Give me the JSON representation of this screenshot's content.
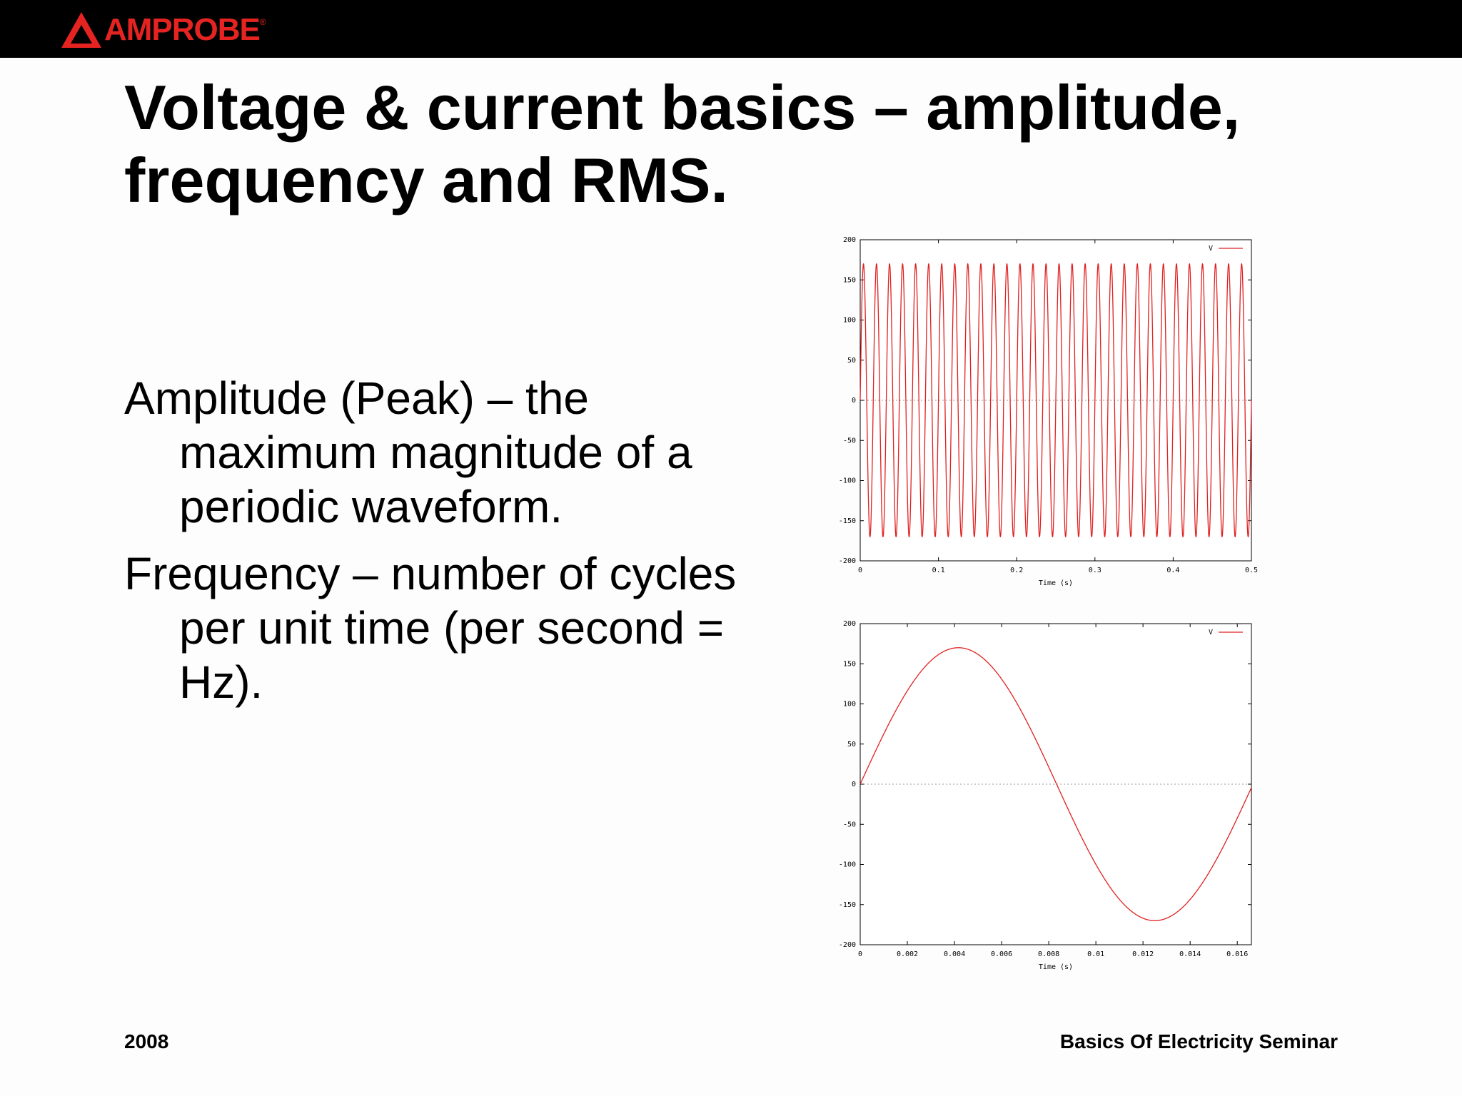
{
  "header": {
    "brand": "AMPROBE",
    "brand_color": "#e52421",
    "registered_mark": "®"
  },
  "slide": {
    "title": "Voltage & current basics – amplitude, frequency and RMS.",
    "bullets": [
      "Amplitude (Peak) – the maximum magnitude of a periodic waveform.",
      "Frequency – number of cycles per unit time (per second = Hz)."
    ]
  },
  "footer": {
    "year": "2008",
    "seminar": "Basics Of Electricity Seminar"
  },
  "chart_data": [
    {
      "type": "line",
      "xlabel": "Time (s)",
      "ylabel": "",
      "xlim": [
        0,
        0.5
      ],
      "ylim": [
        -200,
        200
      ],
      "xticks": [
        "0",
        "0.1",
        "0.2",
        "0.3",
        "0.4",
        "0.5"
      ],
      "yticks": [
        "-200",
        "-150",
        "-100",
        "-50",
        "0",
        "50",
        "100",
        "150",
        "200"
      ],
      "legend": "top-right",
      "zero_line": true,
      "series": [
        {
          "name": "V",
          "color": "#e02020",
          "function": "sine",
          "amplitude": 170,
          "frequency_hz": 60
        }
      ]
    },
    {
      "type": "line",
      "xlabel": "Time (s)",
      "ylabel": "",
      "xlim": [
        0,
        0.0166
      ],
      "ylim": [
        -200,
        200
      ],
      "xticks": [
        "0",
        "0.002",
        "0.004",
        "0.006",
        "0.008",
        "0.01",
        "0.012",
        "0.014",
        "0.016"
      ],
      "yticks": [
        "-200",
        "-150",
        "-100",
        "-50",
        "0",
        "50",
        "100",
        "150",
        "200"
      ],
      "legend": "top-right",
      "zero_line": true,
      "series": [
        {
          "name": "V",
          "color": "#e02020",
          "function": "sine",
          "amplitude": 170,
          "frequency_hz": 60
        }
      ]
    }
  ]
}
